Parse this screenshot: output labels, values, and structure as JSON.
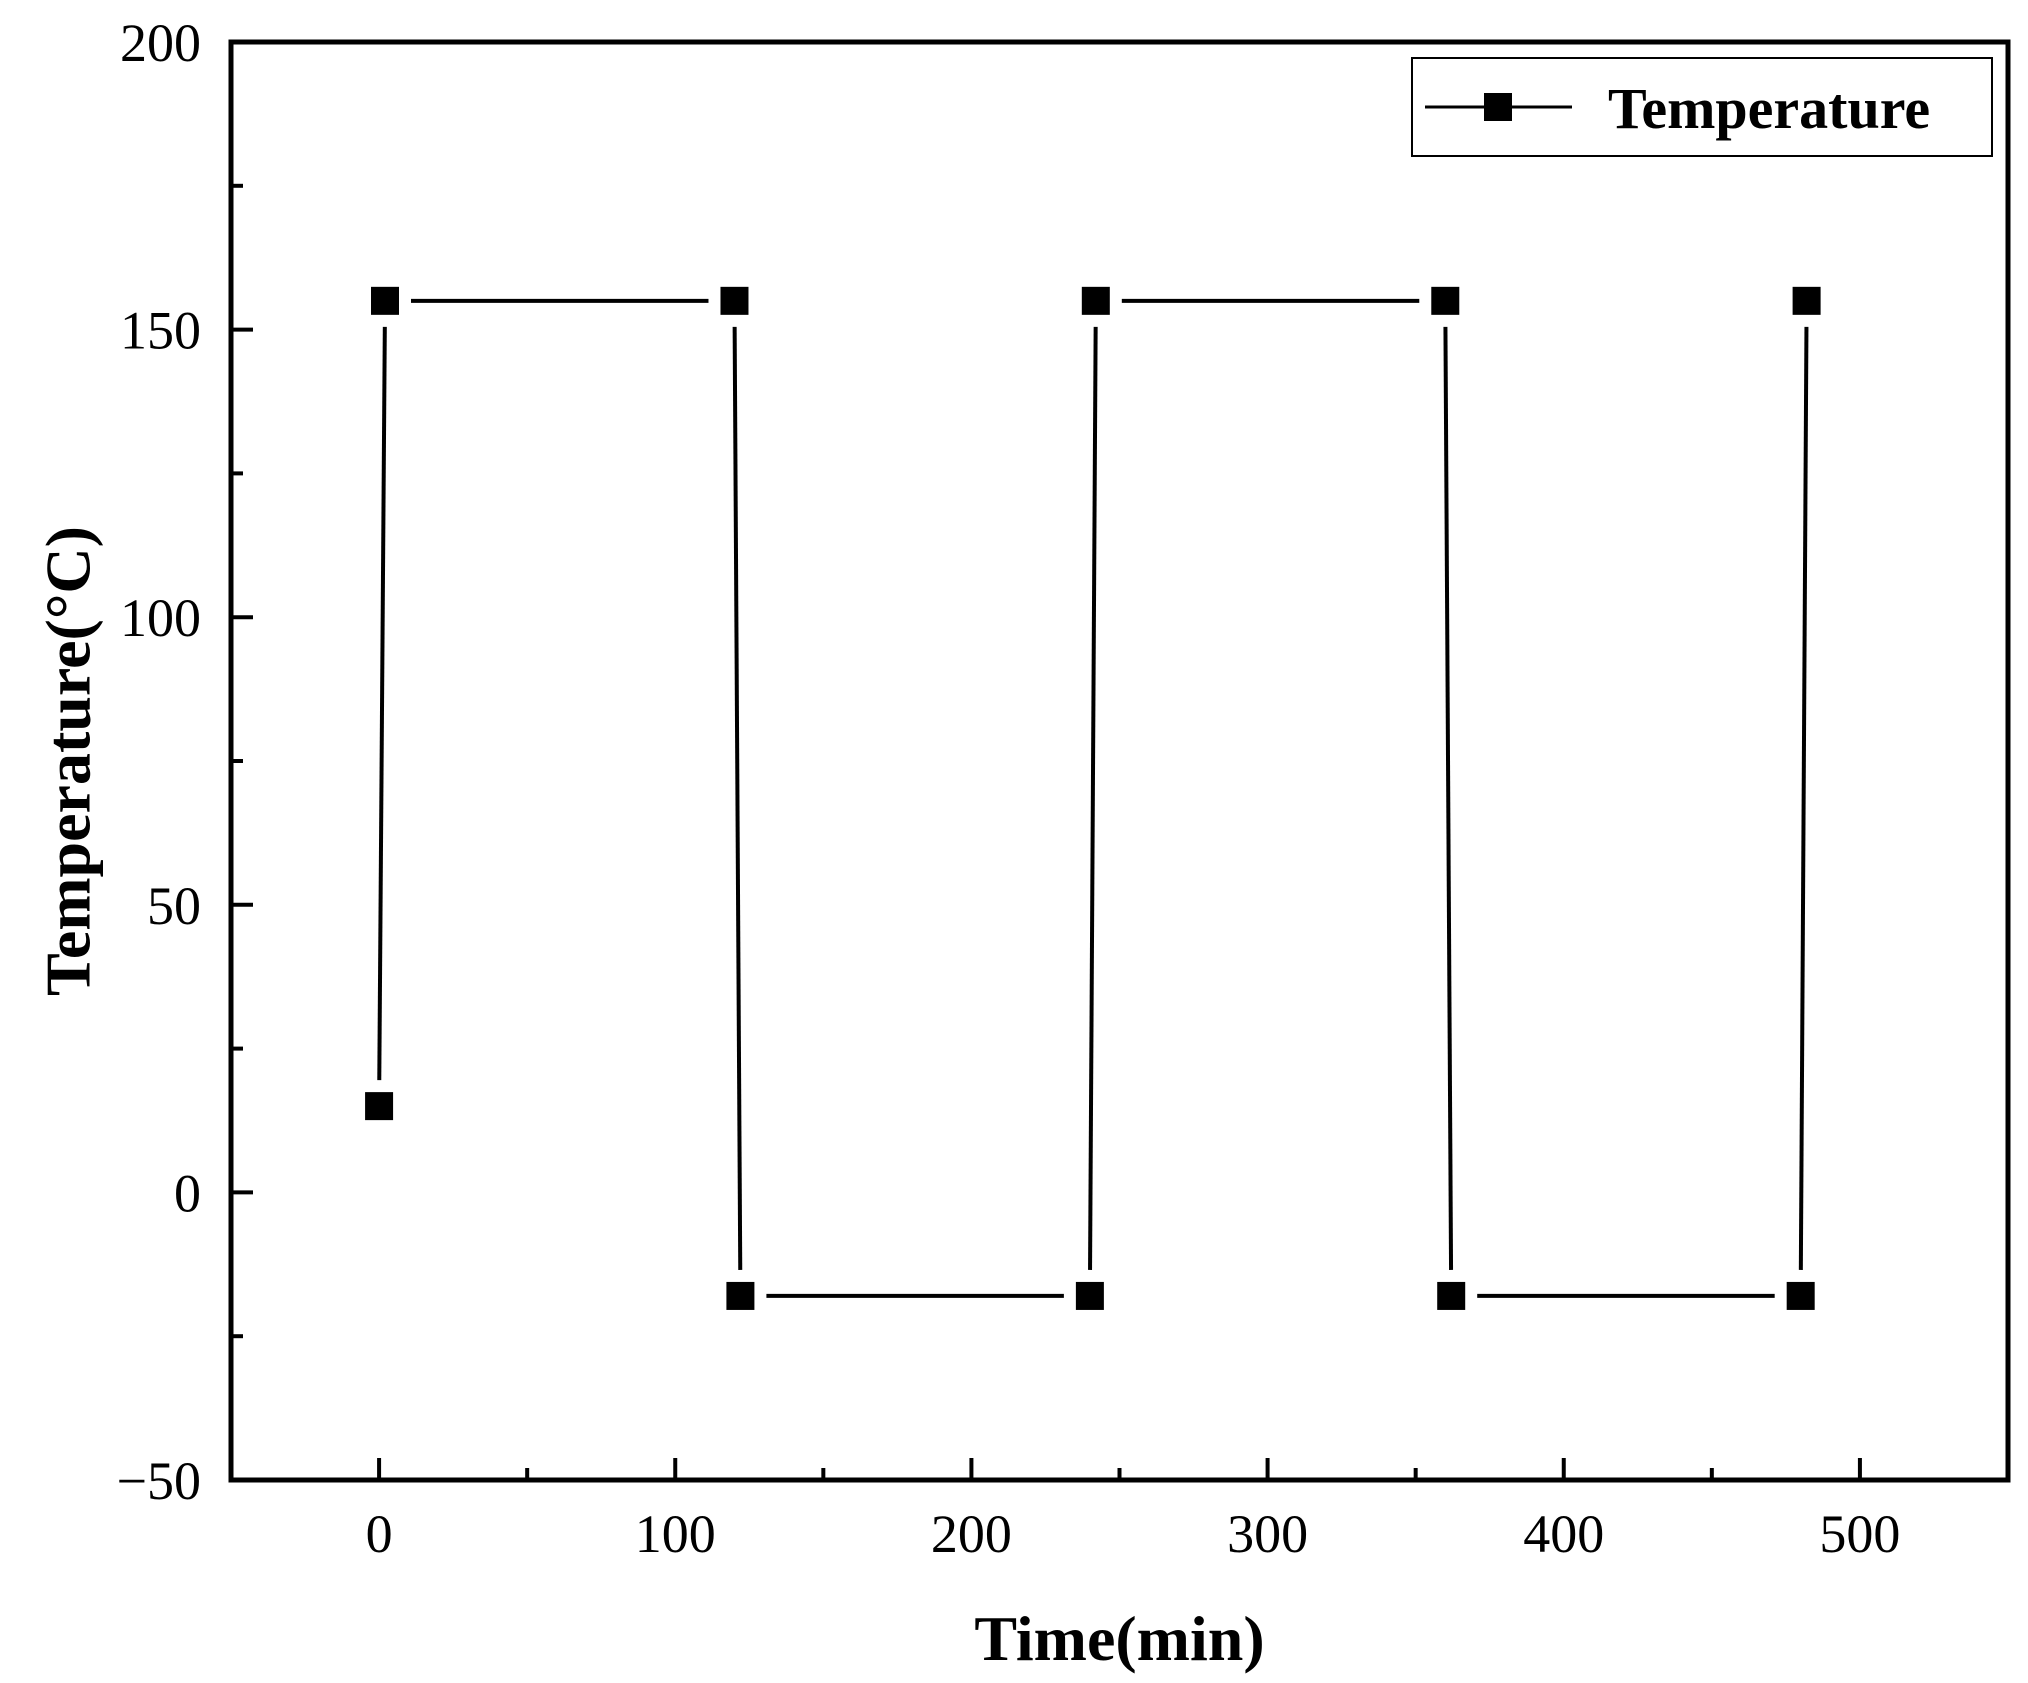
{
  "chart_data": {
    "type": "line",
    "xlabel": "Time(min)",
    "ylabel": "Temperature(°C)",
    "xlim": [
      -50,
      550
    ],
    "ylim": [
      -50,
      200
    ],
    "xticks": [
      0,
      100,
      200,
      300,
      400,
      500
    ],
    "yticks": [
      -50,
      0,
      50,
      100,
      150,
      200
    ],
    "x_minor_step": 50,
    "y_minor_step": 25,
    "grid": false,
    "legend_position": "top-right",
    "marker": "square",
    "color": "#000000",
    "series": [
      {
        "name": "Temperature",
        "x": [
          0,
          2,
          120,
          122,
          240,
          242,
          360,
          362,
          480,
          482
        ],
        "y": [
          15,
          155,
          155,
          -18,
          -18,
          155,
          155,
          -18,
          -18,
          155
        ]
      }
    ]
  }
}
